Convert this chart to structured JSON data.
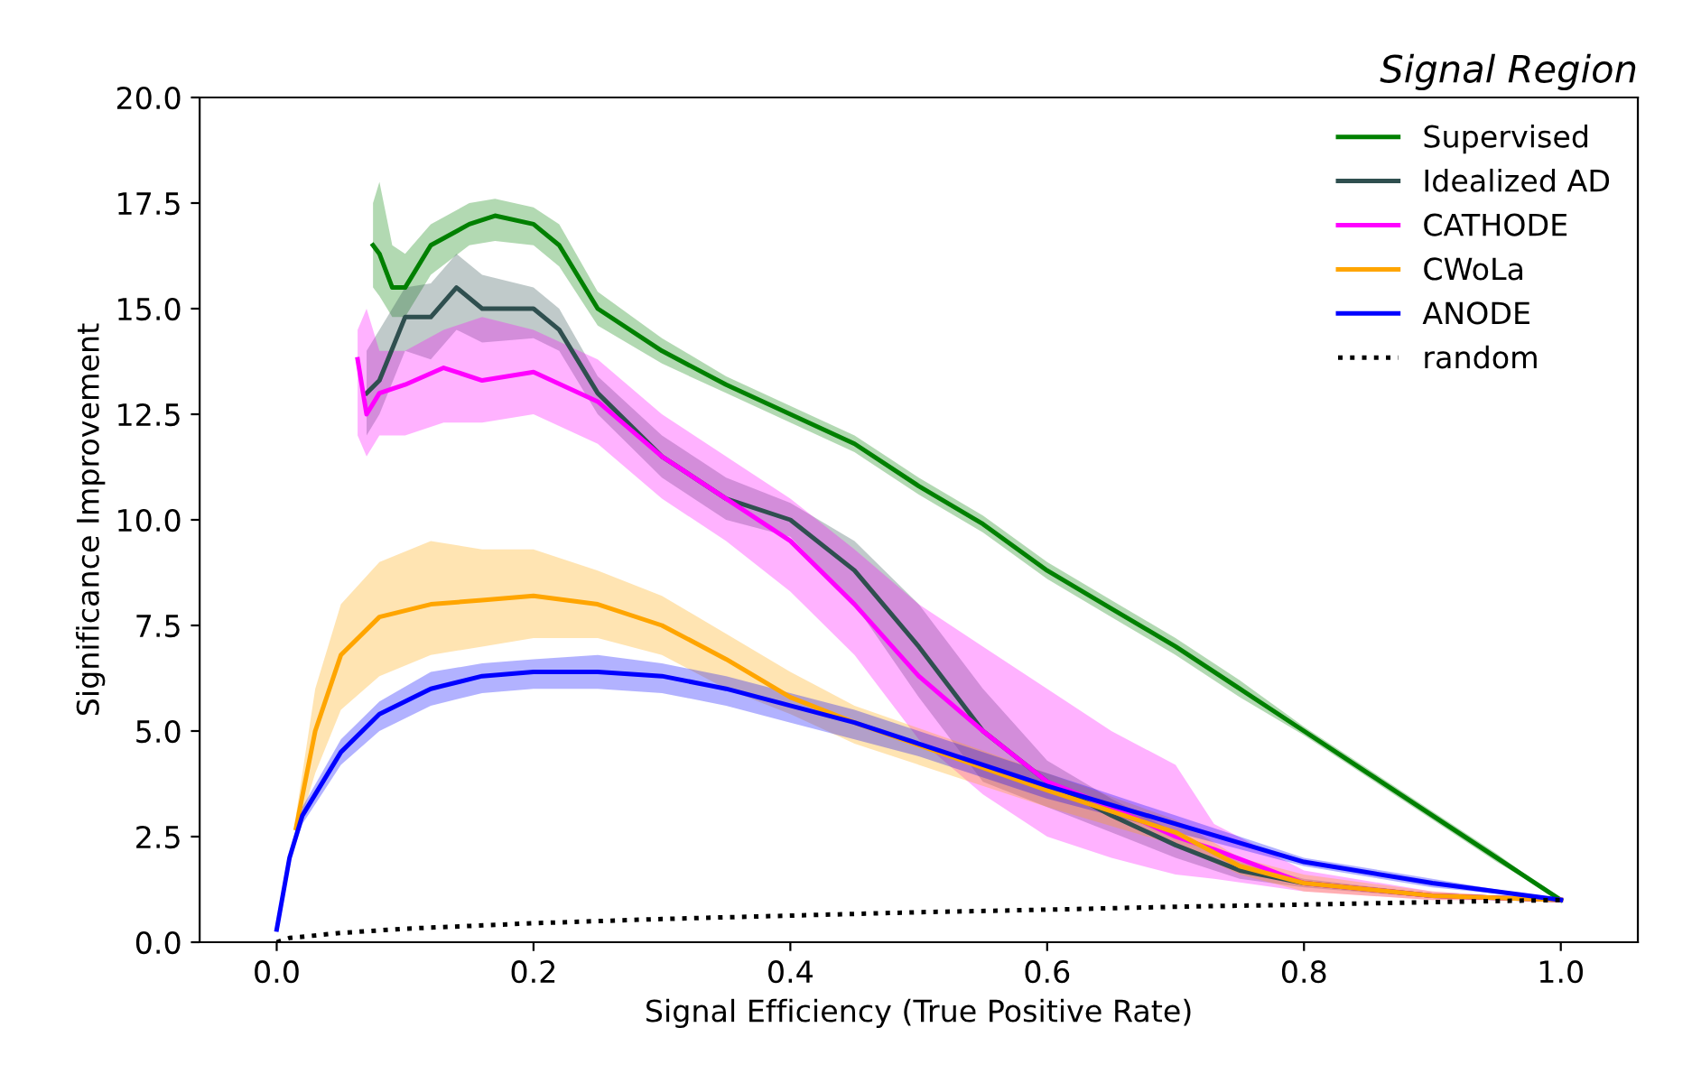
{
  "chart_data": {
    "type": "line",
    "title": "Signal Region",
    "xlabel": "Signal Efficiency (True Positive Rate)",
    "ylabel": "Significance Improvement",
    "xlim": [
      -0.06,
      1.06
    ],
    "ylim": [
      0,
      20
    ],
    "xticks": [
      {
        "value": 0,
        "label": "0.0"
      },
      0.2,
      0.4,
      0.6,
      0.8,
      {
        "value": 1,
        "label": "1.0"
      }
    ],
    "yticks": [
      {
        "value": 0,
        "label": "0.0"
      },
      2.5,
      {
        "value": 5,
        "label": "5.0"
      },
      7.5,
      {
        "value": 10,
        "label": "10.0"
      },
      12.5,
      {
        "value": 15,
        "label": "15.0"
      },
      17.5,
      {
        "value": 20,
        "label": "20.0"
      }
    ],
    "legend": "top right",
    "grid": false,
    "series": [
      {
        "name": "Supervised",
        "color": "#008000",
        "x": [
          0.075,
          0.08,
          0.09,
          0.1,
          0.12,
          0.15,
          0.17,
          0.2,
          0.22,
          0.25,
          0.3,
          0.35,
          0.4,
          0.45,
          0.5,
          0.55,
          0.6,
          0.65,
          0.7,
          0.75,
          0.8,
          0.85,
          0.9,
          0.95,
          1.0
        ],
        "values": [
          16.5,
          16.3,
          15.5,
          15.5,
          16.5,
          17.0,
          17.2,
          17.0,
          16.5,
          15.0,
          14.0,
          13.2,
          12.5,
          11.8,
          10.8,
          9.9,
          8.8,
          7.9,
          7.0,
          6.0,
          5.0,
          4.0,
          3.0,
          2.0,
          1.0
        ],
        "lower": [
          15.5,
          15.3,
          14.8,
          14.8,
          15.8,
          16.5,
          16.6,
          16.5,
          16.0,
          14.6,
          13.7,
          13.0,
          12.3,
          11.6,
          10.6,
          9.7,
          8.6,
          7.7,
          6.8,
          5.8,
          4.9,
          3.9,
          2.9,
          1.9,
          1.0
        ],
        "upper": [
          17.5,
          18.0,
          16.5,
          16.3,
          17.0,
          17.5,
          17.6,
          17.4,
          17.0,
          15.4,
          14.3,
          13.4,
          12.7,
          12.0,
          11.0,
          10.1,
          9.0,
          8.1,
          7.2,
          6.2,
          5.1,
          4.1,
          3.1,
          2.1,
          1.0
        ]
      },
      {
        "name": "Idealized AD",
        "color": "#2f4f4f",
        "x": [
          0.07,
          0.08,
          0.1,
          0.12,
          0.14,
          0.16,
          0.2,
          0.22,
          0.25,
          0.3,
          0.35,
          0.4,
          0.45,
          0.5,
          0.55,
          0.6,
          0.65,
          0.7,
          0.75,
          0.8,
          0.9,
          1.0
        ],
        "values": [
          13.0,
          13.3,
          14.8,
          14.8,
          15.5,
          15.0,
          15.0,
          14.5,
          13.0,
          11.5,
          10.5,
          10.0,
          8.8,
          7.0,
          5.0,
          3.8,
          3.0,
          2.3,
          1.7,
          1.4,
          1.1,
          1.0
        ],
        "lower": [
          12.0,
          12.5,
          14.0,
          13.8,
          14.5,
          14.2,
          14.3,
          14.0,
          12.5,
          11.0,
          10.0,
          9.6,
          8.0,
          5.8,
          3.8,
          3.2,
          2.6,
          2.0,
          1.5,
          1.3,
          1.05,
          1.0
        ],
        "upper": [
          14.0,
          14.5,
          15.5,
          15.6,
          16.3,
          15.8,
          15.5,
          15.0,
          13.4,
          12.0,
          11.0,
          10.4,
          9.5,
          8.0,
          6.0,
          4.3,
          3.4,
          2.6,
          1.9,
          1.5,
          1.15,
          1.0
        ]
      },
      {
        "name": "CATHODE",
        "color": "#ff00ff",
        "x": [
          0.063,
          0.07,
          0.08,
          0.1,
          0.13,
          0.16,
          0.2,
          0.25,
          0.3,
          0.35,
          0.4,
          0.45,
          0.5,
          0.55,
          0.6,
          0.65,
          0.7,
          0.73,
          0.8,
          0.9,
          1.0
        ],
        "values": [
          13.8,
          12.5,
          13.0,
          13.2,
          13.6,
          13.3,
          13.5,
          12.8,
          11.5,
          10.5,
          9.5,
          8.0,
          6.3,
          5.0,
          3.8,
          3.2,
          2.5,
          2.2,
          1.4,
          1.1,
          1.0
        ],
        "lower": [
          12.0,
          11.5,
          12.0,
          12.0,
          12.3,
          12.3,
          12.5,
          11.8,
          10.5,
          9.5,
          8.3,
          6.8,
          4.8,
          3.5,
          2.5,
          2.0,
          1.6,
          1.5,
          1.2,
          1.0,
          1.0
        ],
        "upper": [
          14.5,
          15.0,
          14.0,
          14.0,
          14.5,
          14.8,
          14.5,
          13.8,
          12.5,
          11.5,
          10.5,
          9.3,
          8.0,
          7.0,
          6.0,
          5.0,
          4.2,
          2.8,
          1.7,
          1.2,
          1.0
        ]
      },
      {
        "name": "CWoLa",
        "color": "#ffa500",
        "x": [
          0.015,
          0.03,
          0.05,
          0.08,
          0.12,
          0.16,
          0.2,
          0.25,
          0.3,
          0.35,
          0.4,
          0.45,
          0.6,
          0.7,
          0.75,
          0.8,
          0.9,
          1.0
        ],
        "values": [
          2.7,
          5.0,
          6.8,
          7.7,
          8.0,
          8.1,
          8.2,
          8.0,
          7.5,
          6.7,
          5.8,
          5.2,
          3.6,
          2.6,
          1.8,
          1.4,
          1.1,
          1.0
        ],
        "lower": [
          2.5,
          4.0,
          5.5,
          6.3,
          6.8,
          7.0,
          7.2,
          7.2,
          6.8,
          6.0,
          5.4,
          4.7,
          3.2,
          2.3,
          1.6,
          1.2,
          1.0,
          1.0
        ],
        "upper": [
          3.0,
          6.0,
          8.0,
          9.0,
          9.5,
          9.3,
          9.3,
          8.8,
          8.2,
          7.3,
          6.4,
          5.6,
          4.0,
          2.9,
          2.0,
          1.6,
          1.2,
          1.0
        ]
      },
      {
        "name": "ANODE",
        "color": "#0000ff",
        "x": [
          0.0,
          0.01,
          0.02,
          0.05,
          0.08,
          0.12,
          0.16,
          0.2,
          0.25,
          0.3,
          0.35,
          0.4,
          0.45,
          0.5,
          0.6,
          0.7,
          0.8,
          0.9,
          1.0
        ],
        "values": [
          0.3,
          2.0,
          3.0,
          4.5,
          5.4,
          6.0,
          6.3,
          6.4,
          6.4,
          6.3,
          6.0,
          5.6,
          5.2,
          4.7,
          3.7,
          2.8,
          1.9,
          1.4,
          1.0
        ],
        "lower": [
          0.3,
          1.9,
          2.8,
          4.2,
          5.0,
          5.6,
          5.9,
          6.0,
          6.0,
          5.9,
          5.6,
          5.2,
          4.8,
          4.4,
          3.4,
          2.6,
          1.8,
          1.3,
          1.0
        ],
        "upper": [
          0.3,
          2.1,
          3.2,
          4.8,
          5.7,
          6.4,
          6.6,
          6.7,
          6.8,
          6.6,
          6.3,
          5.9,
          5.5,
          5.0,
          4.0,
          3.0,
          2.0,
          1.5,
          1.0
        ]
      },
      {
        "name": "random",
        "color": "#000000",
        "line_style": "dotted",
        "x": [
          0.0,
          0.01,
          0.05,
          0.1,
          0.2,
          0.3,
          0.4,
          0.5,
          0.6,
          0.7,
          0.8,
          0.9,
          1.0
        ],
        "values": [
          0.0,
          0.1,
          0.22,
          0.32,
          0.45,
          0.55,
          0.63,
          0.71,
          0.77,
          0.84,
          0.89,
          0.95,
          1.0
        ]
      }
    ]
  }
}
